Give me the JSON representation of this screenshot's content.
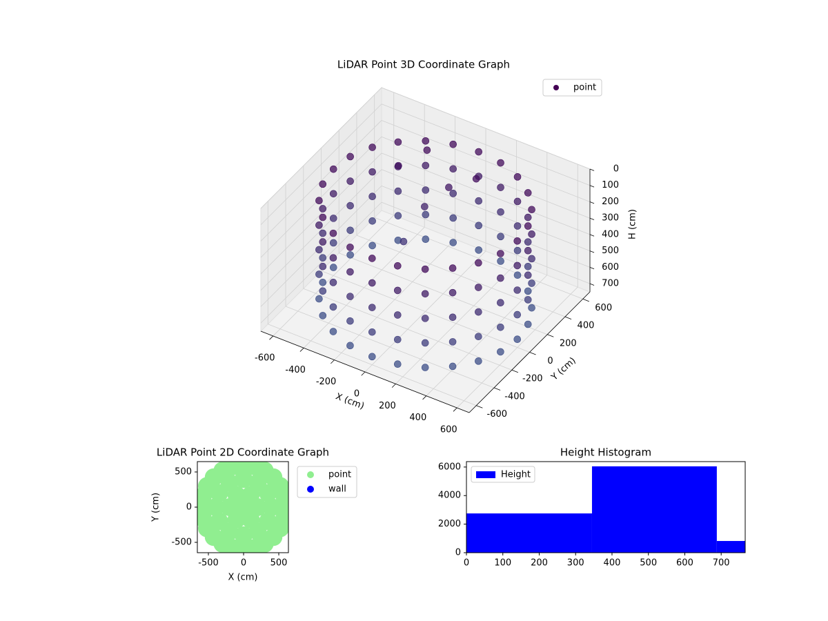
{
  "chart_data": [
    {
      "type": "scatter3d",
      "title": "LiDAR Point 3D Coordinate Graph",
      "x_label": "X (cm)",
      "y_label": "Y (cm)",
      "z_label": "H (cm)",
      "xlim": [
        -680,
        680
      ],
      "ylim": [
        -680,
        680
      ],
      "zlim": [
        0,
        750
      ],
      "invert_z": true,
      "xticks": [
        -600,
        -400,
        -200,
        0,
        200,
        400,
        600
      ],
      "yticks": [
        -600,
        -400,
        -200,
        0,
        200,
        400,
        600
      ],
      "zticks": [
        0,
        100,
        200,
        300,
        400,
        500,
        600,
        700
      ],
      "grid": true,
      "legend": "upper right",
      "series": [
        {
          "name": "point",
          "color": "#440154",
          "x": [
            600,
            580,
            520,
            424,
            300,
            155,
            0,
            -155,
            -300,
            -424,
            -520,
            -580,
            -600,
            -580,
            -520,
            -424,
            -300,
            -155,
            0,
            155,
            300,
            424,
            520,
            580,
            600,
            580,
            520,
            424,
            300,
            155,
            0,
            -155,
            -300,
            -424,
            -520,
            -580,
            -600,
            -580,
            -520,
            -424,
            -300,
            -155,
            0,
            155,
            300,
            424,
            520,
            580,
            600,
            580,
            520,
            424,
            300,
            155,
            0,
            -155,
            -300,
            -424,
            -520,
            -580,
            -600,
            -580,
            -520,
            -424,
            -300,
            -155,
            0,
            155,
            300,
            424,
            520,
            580,
            600,
            580,
            520,
            424,
            300,
            155,
            0,
            -155,
            -300,
            -424,
            -520,
            -580,
            -600,
            -580,
            -520,
            -424,
            -300,
            -155,
            0,
            155,
            300,
            424,
            520,
            580,
            600,
            580,
            520,
            424,
            300,
            155,
            0,
            -155,
            -300,
            -424,
            -520,
            -580,
            -600,
            -580,
            -520,
            -424,
            -300,
            -155,
            0,
            155,
            300,
            424,
            520,
            580,
            -350,
            -250,
            -150,
            -50,
            100,
            -200
          ],
          "y": [
            0,
            155,
            300,
            424,
            520,
            580,
            600,
            580,
            520,
            424,
            300,
            155,
            0,
            -155,
            -300,
            -424,
            -520,
            -580,
            -600,
            -580,
            -520,
            -424,
            -300,
            -155,
            0,
            155,
            300,
            424,
            520,
            580,
            600,
            580,
            520,
            424,
            300,
            155,
            0,
            -155,
            -300,
            -424,
            -520,
            -580,
            -600,
            -580,
            -520,
            -424,
            -300,
            -155,
            0,
            155,
            300,
            424,
            520,
            580,
            600,
            580,
            520,
            424,
            300,
            155,
            0,
            -155,
            -300,
            -424,
            -520,
            -580,
            -600,
            -580,
            -520,
            -424,
            -300,
            -155,
            0,
            155,
            300,
            424,
            520,
            580,
            600,
            580,
            520,
            424,
            300,
            155,
            0,
            -155,
            -300,
            -424,
            -520,
            -580,
            -600,
            -580,
            -520,
            -424,
            -300,
            -155,
            0,
            155,
            300,
            424,
            520,
            580,
            600,
            580,
            520,
            424,
            300,
            155,
            0,
            -155,
            -300,
            -424,
            -520,
            -580,
            -600,
            -580,
            -520,
            -424,
            -300,
            -155,
            300,
            450,
            250,
            350,
            400,
            100
          ],
          "z": [
            100,
            100,
            100,
            100,
            100,
            100,
            100,
            100,
            100,
            100,
            100,
            100,
            100,
            100,
            100,
            100,
            100,
            100,
            100,
            100,
            100,
            100,
            100,
            100,
            250,
            250,
            250,
            250,
            250,
            250,
            250,
            250,
            250,
            250,
            250,
            250,
            250,
            250,
            250,
            250,
            250,
            250,
            250,
            250,
            250,
            250,
            250,
            250,
            400,
            400,
            400,
            400,
            400,
            400,
            400,
            400,
            400,
            400,
            400,
            400,
            400,
            400,
            400,
            400,
            400,
            400,
            400,
            400,
            400,
            400,
            400,
            400,
            550,
            550,
            550,
            550,
            550,
            550,
            550,
            550,
            550,
            550,
            550,
            550,
            550,
            550,
            550,
            550,
            550,
            550,
            550,
            550,
            550,
            550,
            550,
            550,
            700,
            700,
            700,
            700,
            700,
            700,
            700,
            700,
            700,
            700,
            700,
            700,
            700,
            700,
            700,
            700,
            700,
            700,
            700,
            700,
            700,
            700,
            700,
            700,
            150,
            100,
            300,
            200,
            120,
            450
          ]
        }
      ]
    },
    {
      "type": "scatter",
      "title": "LiDAR Point 2D Coordinate Graph",
      "x_label": "X (cm)",
      "y_label": "Y (cm)",
      "xlim": [
        -657,
        637
      ],
      "ylim": [
        -647,
        647
      ],
      "xticks": [
        -500,
        0,
        500
      ],
      "yticks": [
        -500,
        0,
        500
      ],
      "legend": "outside right",
      "series": [
        {
          "name": "point",
          "color": "#90ee90",
          "x": [
            600,
            580,
            520,
            424,
            300,
            155,
            0,
            -155,
            -300,
            -424,
            -520,
            -580,
            -600,
            -580,
            -520,
            -424,
            -300,
            -155,
            0,
            155,
            300,
            424,
            520,
            580,
            400,
            346,
            200,
            0,
            -200,
            -346,
            -400,
            -346,
            -200,
            0,
            200,
            346,
            200,
            100,
            -100,
            -200,
            -100,
            100,
            0
          ],
          "y": [
            0,
            155,
            300,
            424,
            520,
            580,
            600,
            580,
            520,
            424,
            300,
            155,
            0,
            -155,
            -300,
            -424,
            -520,
            -580,
            -600,
            -580,
            -520,
            -424,
            -300,
            -155,
            0,
            200,
            346,
            400,
            346,
            200,
            0,
            -200,
            -346,
            -400,
            -346,
            -200,
            0,
            173,
            173,
            0,
            -173,
            -173,
            0
          ]
        },
        {
          "name": "wall",
          "color": "#0000ff",
          "x": [],
          "y": []
        }
      ]
    },
    {
      "type": "histogram",
      "title": "Height Histogram",
      "xlim": [
        0,
        766
      ],
      "ylim": [
        0,
        6380
      ],
      "xticks": [
        0,
        100,
        200,
        300,
        400,
        500,
        600,
        700
      ],
      "yticks": [
        0,
        2000,
        4000,
        6000
      ],
      "legend": "upper left",
      "bins": [
        0,
        345,
        688,
        766
      ],
      "series": [
        {
          "name": "Height",
          "color": "#0000ff",
          "values": [
            2750,
            6050,
            820
          ]
        }
      ]
    }
  ]
}
